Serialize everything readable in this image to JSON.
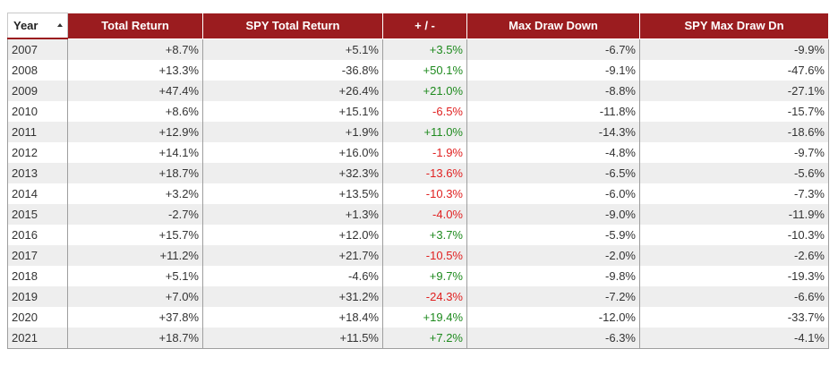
{
  "colors": {
    "header_bg": "#9b1c1f",
    "positive": "#1e8a1e",
    "negative": "#e02020",
    "row_alt": "#eeeeee"
  },
  "table": {
    "columns": [
      "Year",
      "Total Return",
      "SPY Total Return",
      "+ / -",
      "Max Draw Down",
      "SPY Max Draw Dn"
    ],
    "sort": {
      "column": "Year",
      "direction": "ascending",
      "icon": "sort-ascending-icon"
    },
    "rows": [
      {
        "year": "2007",
        "total_return": "+8.7%",
        "spy_total_return": "+5.1%",
        "diff": "+3.5%",
        "diff_sign": "pos",
        "max_draw_down": "-6.7%",
        "spy_max_draw_dn": "-9.9%"
      },
      {
        "year": "2008",
        "total_return": "+13.3%",
        "spy_total_return": "-36.8%",
        "diff": "+50.1%",
        "diff_sign": "pos",
        "max_draw_down": "-9.1%",
        "spy_max_draw_dn": "-47.6%"
      },
      {
        "year": "2009",
        "total_return": "+47.4%",
        "spy_total_return": "+26.4%",
        "diff": "+21.0%",
        "diff_sign": "pos",
        "max_draw_down": "-8.8%",
        "spy_max_draw_dn": "-27.1%"
      },
      {
        "year": "2010",
        "total_return": "+8.6%",
        "spy_total_return": "+15.1%",
        "diff": "-6.5%",
        "diff_sign": "neg",
        "max_draw_down": "-11.8%",
        "spy_max_draw_dn": "-15.7%"
      },
      {
        "year": "2011",
        "total_return": "+12.9%",
        "spy_total_return": "+1.9%",
        "diff": "+11.0%",
        "diff_sign": "pos",
        "max_draw_down": "-14.3%",
        "spy_max_draw_dn": "-18.6%"
      },
      {
        "year": "2012",
        "total_return": "+14.1%",
        "spy_total_return": "+16.0%",
        "diff": "-1.9%",
        "diff_sign": "neg",
        "max_draw_down": "-4.8%",
        "spy_max_draw_dn": "-9.7%"
      },
      {
        "year": "2013",
        "total_return": "+18.7%",
        "spy_total_return": "+32.3%",
        "diff": "-13.6%",
        "diff_sign": "neg",
        "max_draw_down": "-6.5%",
        "spy_max_draw_dn": "-5.6%"
      },
      {
        "year": "2014",
        "total_return": "+3.2%",
        "spy_total_return": "+13.5%",
        "diff": "-10.3%",
        "diff_sign": "neg",
        "max_draw_down": "-6.0%",
        "spy_max_draw_dn": "-7.3%"
      },
      {
        "year": "2015",
        "total_return": "-2.7%",
        "spy_total_return": "+1.3%",
        "diff": "-4.0%",
        "diff_sign": "neg",
        "max_draw_down": "-9.0%",
        "spy_max_draw_dn": "-11.9%"
      },
      {
        "year": "2016",
        "total_return": "+15.7%",
        "spy_total_return": "+12.0%",
        "diff": "+3.7%",
        "diff_sign": "pos",
        "max_draw_down": "-5.9%",
        "spy_max_draw_dn": "-10.3%"
      },
      {
        "year": "2017",
        "total_return": "+11.2%",
        "spy_total_return": "+21.7%",
        "diff": "-10.5%",
        "diff_sign": "neg",
        "max_draw_down": "-2.0%",
        "spy_max_draw_dn": "-2.6%"
      },
      {
        "year": "2018",
        "total_return": "+5.1%",
        "spy_total_return": "-4.6%",
        "diff": "+9.7%",
        "diff_sign": "pos",
        "max_draw_down": "-9.8%",
        "spy_max_draw_dn": "-19.3%"
      },
      {
        "year": "2019",
        "total_return": "+7.0%",
        "spy_total_return": "+31.2%",
        "diff": "-24.3%",
        "diff_sign": "neg",
        "max_draw_down": "-7.2%",
        "spy_max_draw_dn": "-6.6%"
      },
      {
        "year": "2020",
        "total_return": "+37.8%",
        "spy_total_return": "+18.4%",
        "diff": "+19.4%",
        "diff_sign": "pos",
        "max_draw_down": "-12.0%",
        "spy_max_draw_dn": "-33.7%"
      },
      {
        "year": "2021",
        "total_return": "+18.7%",
        "spy_total_return": "+11.5%",
        "diff": "+7.2%",
        "diff_sign": "pos",
        "max_draw_down": "-6.3%",
        "spy_max_draw_dn": "-4.1%"
      }
    ]
  }
}
